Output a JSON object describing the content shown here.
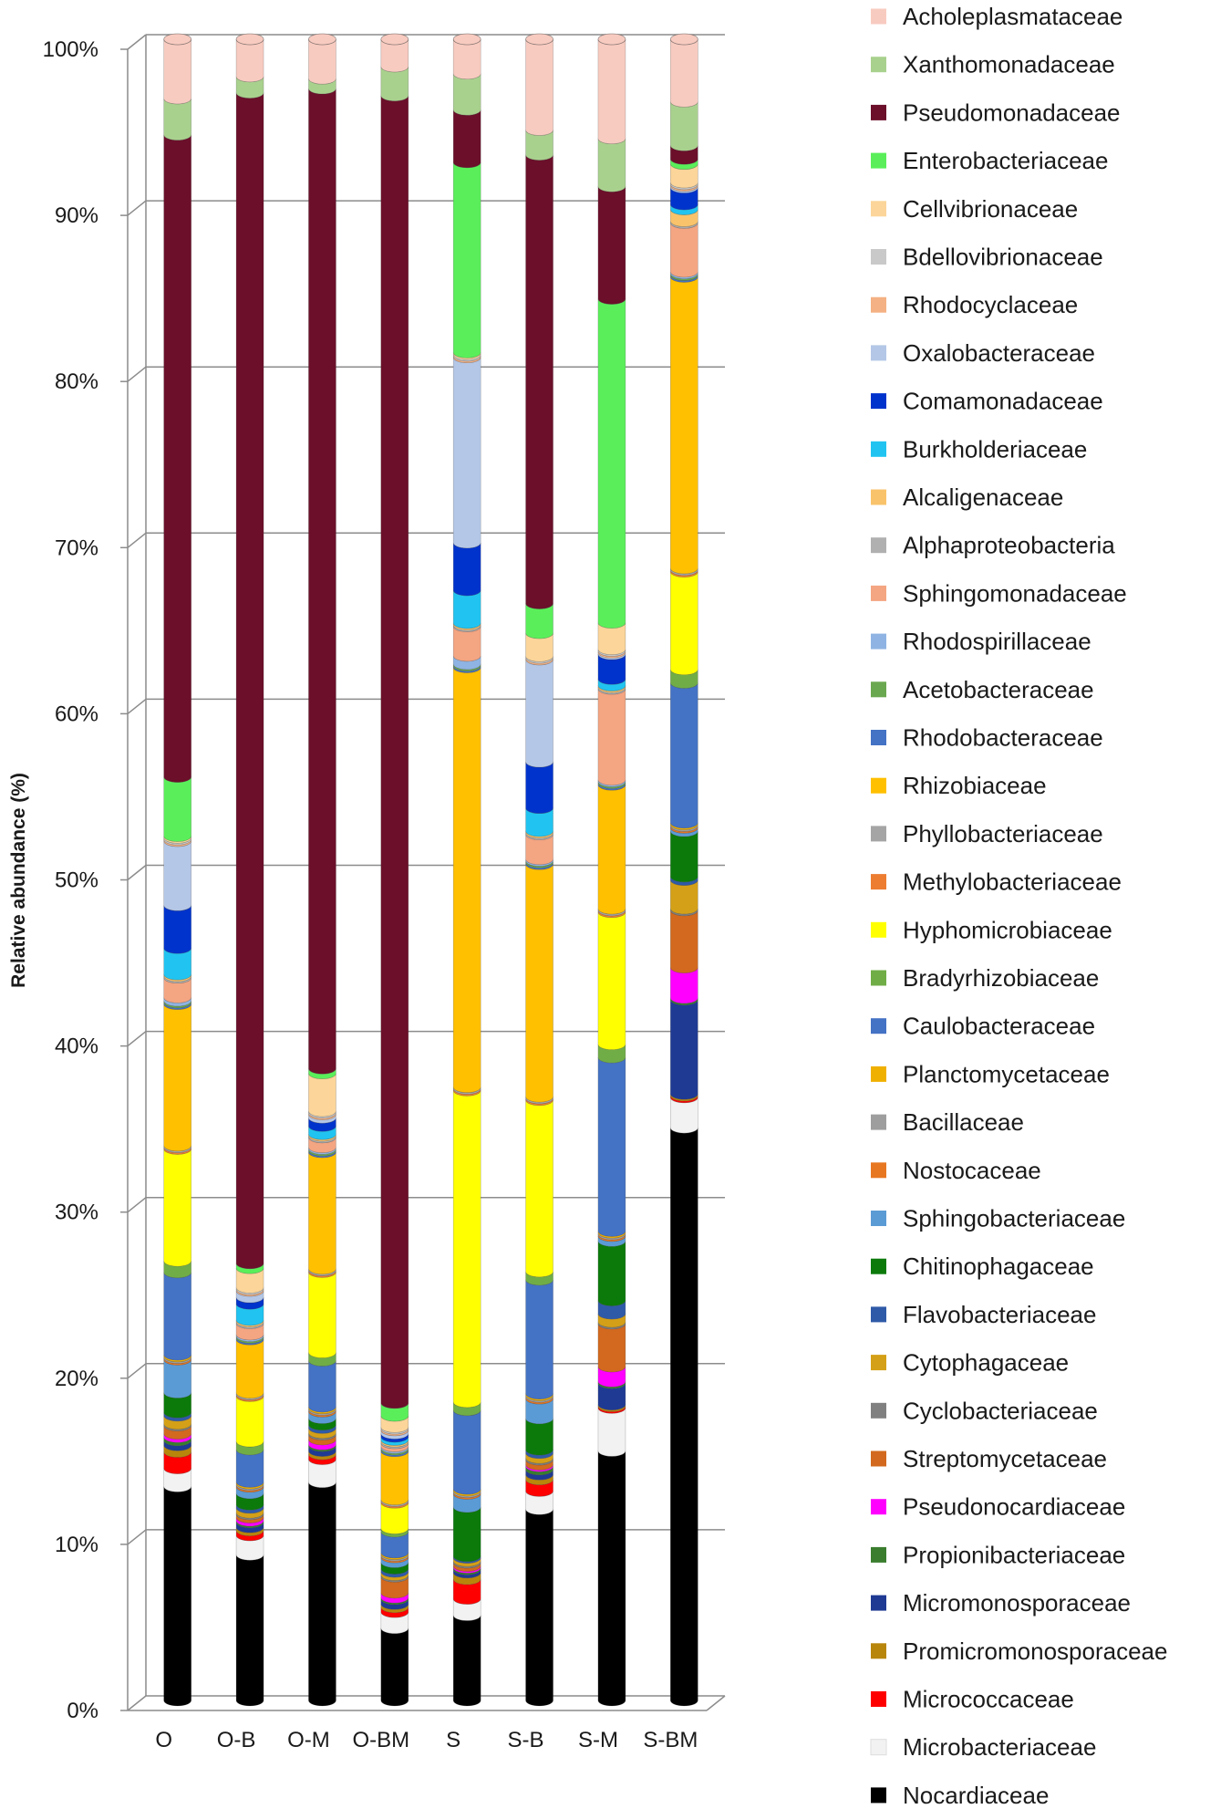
{
  "chart_data": {
    "type": "bar",
    "stacked": true,
    "percent_stacked": true,
    "title": "",
    "xlabel": "",
    "ylabel": "Relative abundance (%)",
    "ylim": [
      0,
      100
    ],
    "yticks": [
      "0%",
      "10%",
      "20%",
      "30%",
      "40%",
      "50%",
      "60%",
      "70%",
      "80%",
      "90%",
      "100%"
    ],
    "categories": [
      "O",
      "O-B",
      "O-M",
      "O-BM",
      "S",
      "S-B",
      "S-M",
      "S-BM"
    ],
    "legend_position": "right",
    "series": [
      {
        "name": "Nocardiaceae",
        "color": "#000000",
        "values": [
          13.0,
          9.0,
          13.3,
          4.5,
          5.2,
          11.6,
          15.1,
          34.0
        ]
      },
      {
        "name": "Microbacteriaceae",
        "color": "#f2f2f2",
        "values": [
          1.1,
          1.2,
          1.4,
          1.0,
          1.0,
          1.1,
          2.6,
          1.8
        ]
      },
      {
        "name": "Micrococcaceae",
        "color": "#ff0000",
        "values": [
          1.0,
          0.3,
          0.3,
          0.3,
          1.2,
          0.7,
          0.1,
          0.1
        ]
      },
      {
        "name": "Promicromonosporaceae",
        "color": "#b8860b",
        "values": [
          0.4,
          0.2,
          0.2,
          0.2,
          0.4,
          0.3,
          0.1,
          0.1
        ]
      },
      {
        "name": "Micromonosporaceae",
        "color": "#1f3a93",
        "values": [
          0.3,
          0.3,
          0.3,
          0.3,
          0.2,
          0.3,
          1.3,
          5.6
        ]
      },
      {
        "name": "Propionibacteriaceae",
        "color": "#3a7d2e",
        "values": [
          0.2,
          0.1,
          0.1,
          0.1,
          0.1,
          0.2,
          0.1,
          0.1
        ]
      },
      {
        "name": "Pseudonocardiaceae",
        "color": "#ff00ff",
        "values": [
          0.2,
          0.2,
          0.3,
          0.3,
          0.1,
          0.1,
          0.9,
          1.8
        ]
      },
      {
        "name": "Streptomycetaceae",
        "color": "#d2691e",
        "values": [
          0.5,
          0.2,
          0.3,
          1.0,
          0.2,
          0.3,
          2.6,
          3.4
        ]
      },
      {
        "name": "Cyclobacteriaceae",
        "color": "#808080",
        "values": [
          0.1,
          0.1,
          0.1,
          0.1,
          0.1,
          0.1,
          0.1,
          0.1
        ]
      },
      {
        "name": "Cytophagaceae",
        "color": "#d4a017",
        "values": [
          0.5,
          0.3,
          0.3,
          0.2,
          0.2,
          0.3,
          0.5,
          1.7
        ]
      },
      {
        "name": "Flavobacteriaceae",
        "color": "#2f5aa8",
        "values": [
          0.2,
          0.2,
          0.2,
          0.2,
          0.1,
          0.2,
          0.8,
          0.2
        ]
      },
      {
        "name": "Chitinophagaceae",
        "color": "#0b7a0b",
        "values": [
          1.2,
          0.7,
          0.4,
          0.4,
          3.0,
          1.9,
          3.6,
          2.7
        ]
      },
      {
        "name": "Sphingobacteriaceae",
        "color": "#5b9bd5",
        "values": [
          2.0,
          0.4,
          0.4,
          0.3,
          0.8,
          1.2,
          0.3,
          0.2
        ]
      },
      {
        "name": "Nostocaceae",
        "color": "#e87722",
        "values": [
          0.1,
          0.1,
          0.1,
          0.1,
          0.1,
          0.1,
          0.1,
          0.1
        ]
      },
      {
        "name": "Bacillaceae",
        "color": "#9e9e9e",
        "values": [
          0.1,
          0.1,
          0.1,
          0.1,
          0.1,
          0.1,
          0.1,
          0.1
        ]
      },
      {
        "name": "Planctomycetaceae",
        "color": "#f0b000",
        "values": [
          0.1,
          0.1,
          0.1,
          0.1,
          0.1,
          0.1,
          0.1,
          0.1
        ]
      },
      {
        "name": "Caulobacteraceae",
        "color": "#4472c4",
        "values": [
          5.0,
          2.0,
          2.8,
          1.3,
          4.8,
          6.9,
          10.5,
          8.3
        ]
      },
      {
        "name": "Bradyrhizobiaceae",
        "color": "#70ad47",
        "values": [
          0.7,
          0.5,
          0.5,
          0.2,
          0.5,
          0.5,
          0.8,
          0.8
        ]
      },
      {
        "name": "Hyphomicrobiaceae",
        "color": "#ffff00",
        "values": [
          6.8,
          2.8,
          4.9,
          1.6,
          19.0,
          10.4,
          8.0,
          5.8
        ]
      },
      {
        "name": "Methylobacteriaceae",
        "color": "#ed7d31",
        "values": [
          0.1,
          0.1,
          0.1,
          0.1,
          0.1,
          0.1,
          0.1,
          0.1
        ]
      },
      {
        "name": "Phyllobacteriaceae",
        "color": "#a5a5a5",
        "values": [
          0.1,
          0.1,
          0.1,
          0.1,
          0.1,
          0.1,
          0.1,
          0.1
        ]
      },
      {
        "name": "Rhizobiaceae",
        "color": "#ffc000",
        "values": [
          8.6,
          3.3,
          7.1,
          3.0,
          25.6,
          14.1,
          7.5,
          17.3
        ]
      },
      {
        "name": "Rhodobacteraceae",
        "color": "#4472c4",
        "values": [
          0.1,
          0.1,
          0.1,
          0.1,
          0.1,
          0.1,
          0.1,
          0.1
        ]
      },
      {
        "name": "Acetobacteraceae",
        "color": "#6aa84f",
        "values": [
          0.1,
          0.1,
          0.1,
          0.1,
          0.1,
          0.1,
          0.1,
          0.1
        ]
      },
      {
        "name": "Rhodospirillaceae",
        "color": "#8fb4e3",
        "values": [
          0.2,
          0.1,
          0.1,
          0.1,
          0.5,
          0.1,
          0.1,
          0.1
        ]
      },
      {
        "name": "Sphingomonadaceae",
        "color": "#f4a582",
        "values": [
          1.2,
          0.7,
          0.6,
          0.2,
          1.8,
          1.5,
          5.5,
          2.9
        ]
      },
      {
        "name": "Alphaproteobacteria",
        "color": "#b0b0b0",
        "values": [
          0.1,
          0.1,
          0.1,
          0.1,
          0.1,
          0.1,
          0.1,
          0.1
        ]
      },
      {
        "name": "Alcaligenaceae",
        "color": "#f9c36b",
        "values": [
          0.1,
          0.1,
          0.1,
          0.1,
          0.1,
          0.1,
          0.1,
          0.7
        ]
      },
      {
        "name": "Burkholderiaceae",
        "color": "#21c4f0",
        "values": [
          1.6,
          1.0,
          0.5,
          0.2,
          2.0,
          1.4,
          0.4,
          0.3
        ]
      },
      {
        "name": "Comamonadaceae",
        "color": "#0033cc",
        "values": [
          2.6,
          0.4,
          0.5,
          0.2,
          2.9,
          2.8,
          1.5,
          1.0
        ]
      },
      {
        "name": "Oxalobacteraceae",
        "color": "#b4c7e7",
        "values": [
          3.9,
          0.4,
          0.2,
          0.2,
          11.3,
          6.2,
          0.1,
          0.1
        ]
      },
      {
        "name": "Rhodocyclaceae",
        "color": "#f4b183",
        "values": [
          0.1,
          0.1,
          0.1,
          0.1,
          0.1,
          0.1,
          0.1,
          0.1
        ]
      },
      {
        "name": "Bdellovibrionaceae",
        "color": "#c9c9c9",
        "values": [
          0.1,
          0.1,
          0.1,
          0.1,
          0.1,
          0.1,
          0.1,
          0.1
        ]
      },
      {
        "name": "Cellvibrionaceae",
        "color": "#fbd59a",
        "values": [
          0.1,
          1.2,
          2.3,
          0.7,
          0.1,
          1.4,
          1.6,
          1.1
        ]
      },
      {
        "name": "Enterobacteriaceae",
        "color": "#5aef5a",
        "values": [
          3.6,
          0.3,
          0.3,
          0.8,
          11.6,
          1.8,
          19.6,
          0.3
        ]
      },
      {
        "name": "Pseudomonadaceae",
        "color": "#6b0f2a",
        "values": [
          39.0,
          72.3,
          59.7,
          81.3,
          3.2,
          27.2,
          6.8,
          0.8
        ]
      },
      {
        "name": "Xanthomonadaceae",
        "color": "#a9d18e",
        "values": [
          2.2,
          1.0,
          0.6,
          1.8,
          2.2,
          1.5,
          2.9,
          2.6
        ]
      },
      {
        "name": "Acholeplasmataceae",
        "color": "#f8cbc0",
        "values": [
          3.6,
          2.3,
          2.4,
          1.7,
          2.1,
          5.5,
          6.0,
          3.7
        ]
      }
    ],
    "legend_entries": [
      {
        "name": "Acholeplasmataceae",
        "color": "#f8cbc0"
      },
      {
        "name": "Xanthomonadaceae",
        "color": "#a9d18e"
      },
      {
        "name": "Pseudomonadaceae",
        "color": "#6b0f2a"
      },
      {
        "name": "Enterobacteriaceae",
        "color": "#5aef5a"
      },
      {
        "name": "Cellvibrionaceae",
        "color": "#fbd59a"
      },
      {
        "name": "Bdellovibrionaceae",
        "color": "#c9c9c9"
      },
      {
        "name": "Rhodocyclaceae",
        "color": "#f4b183"
      },
      {
        "name": "Oxalobacteraceae",
        "color": "#b4c7e7"
      },
      {
        "name": "Comamonadaceae",
        "color": "#0033cc"
      },
      {
        "name": "Burkholderiaceae",
        "color": "#21c4f0"
      },
      {
        "name": "Alcaligenaceae",
        "color": "#f9c36b"
      },
      {
        "name": "Alphaproteobacteria",
        "color": "#b0b0b0"
      },
      {
        "name": "Sphingomonadaceae",
        "color": "#f4a582"
      },
      {
        "name": "Rhodospirillaceae",
        "color": "#8fb4e3"
      },
      {
        "name": "Acetobacteraceae",
        "color": "#6aa84f"
      },
      {
        "name": "Rhodobacteraceae",
        "color": "#4472c4"
      },
      {
        "name": "Rhizobiaceae",
        "color": "#ffc000"
      },
      {
        "name": "Phyllobacteriaceae",
        "color": "#a5a5a5"
      },
      {
        "name": "Methylobacteriaceae",
        "color": "#ed7d31"
      },
      {
        "name": "Hyphomicrobiaceae",
        "color": "#ffff00"
      },
      {
        "name": "Bradyrhizobiaceae",
        "color": "#70ad47"
      },
      {
        "name": "Caulobacteraceae",
        "color": "#4472c4"
      },
      {
        "name": "Planctomycetaceae",
        "color": "#f0b000"
      },
      {
        "name": "Bacillaceae",
        "color": "#9e9e9e"
      },
      {
        "name": "Nostocaceae",
        "color": "#e87722"
      },
      {
        "name": "Sphingobacteriaceae",
        "color": "#5b9bd5"
      },
      {
        "name": "Chitinophagaceae",
        "color": "#0b7a0b"
      },
      {
        "name": "Flavobacteriaceae",
        "color": "#2f5aa8"
      },
      {
        "name": "Cytophagaceae",
        "color": "#d4a017"
      },
      {
        "name": "Cyclobacteriaceae",
        "color": "#808080"
      },
      {
        "name": "Streptomycetaceae",
        "color": "#d2691e"
      },
      {
        "name": "Pseudonocardiaceae",
        "color": "#ff00ff"
      },
      {
        "name": "Propionibacteriaceae",
        "color": "#3a7d2e"
      },
      {
        "name": "Micromonosporaceae",
        "color": "#1f3a93"
      },
      {
        "name": "Promicromonosporaceae",
        "color": "#b8860b"
      },
      {
        "name": "Micrococcaceae",
        "color": "#ff0000"
      },
      {
        "name": "Microbacteriaceae",
        "color": "#f2f2f2"
      },
      {
        "name": "Nocardiaceae",
        "color": "#000000"
      }
    ]
  }
}
